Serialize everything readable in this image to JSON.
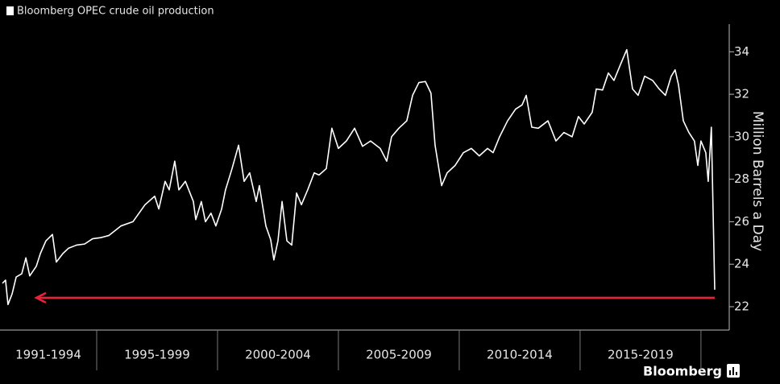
{
  "chart_data": {
    "type": "line",
    "title": "Bloomberg OPEC crude oil production",
    "y_label": "Million Barrels a Day",
    "source": "Bloomberg",
    "xlim": [
      1991,
      2021.17
    ],
    "ylim": [
      20.9,
      35.3
    ],
    "yticks": [
      22,
      24,
      26,
      28,
      30,
      32,
      34
    ],
    "x_bands": [
      {
        "label": "1991-1994",
        "start": 1991,
        "end": 1995
      },
      {
        "label": "1995-1999",
        "start": 1995,
        "end": 2000
      },
      {
        "label": "2000-2004",
        "start": 2000,
        "end": 2005
      },
      {
        "label": "2005-2009",
        "start": 2005,
        "end": 2010
      },
      {
        "label": "2010-2014",
        "start": 2010,
        "end": 2015
      },
      {
        "label": "2015-2019",
        "start": 2015,
        "end": 2020
      }
    ],
    "reference_line": {
      "value": 22.42,
      "x": [
        2020.57,
        1992.5
      ],
      "color": "#e8233b"
    },
    "series": [
      {
        "name": "Bloomberg OPEC crude oil production",
        "color": "#ffffff",
        "x": [
          1991.1,
          1991.23,
          1991.33,
          1991.5,
          1991.67,
          1991.9,
          1992.07,
          1992.23,
          1992.5,
          1992.67,
          1992.9,
          1993.17,
          1993.33,
          1993.6,
          1993.83,
          1994.17,
          1994.5,
          1994.83,
          1995.17,
          1995.5,
          1996.0,
          1996.5,
          1997.0,
          1997.4,
          1997.57,
          1997.83,
          1998.0,
          1998.23,
          1998.4,
          1998.67,
          1999.0,
          1999.1,
          1999.33,
          1999.5,
          1999.73,
          1999.93,
          2000.17,
          2000.33,
          2000.6,
          2000.87,
          2001.1,
          2001.33,
          2001.6,
          2001.73,
          2002.0,
          2002.2,
          2002.33,
          2002.5,
          2002.67,
          2002.87,
          2003.07,
          2003.27,
          2003.47,
          2003.73,
          2004.0,
          2004.2,
          2004.5,
          2004.73,
          2005.0,
          2005.33,
          2005.67,
          2006.0,
          2006.33,
          2006.73,
          2007.0,
          2007.2,
          2007.5,
          2007.83,
          2008.07,
          2008.33,
          2008.6,
          2008.83,
          2009.0,
          2009.27,
          2009.5,
          2009.83,
          2010.17,
          2010.5,
          2010.83,
          2011.17,
          2011.4,
          2011.67,
          2012.0,
          2012.33,
          2012.6,
          2012.77,
          2013.0,
          2013.27,
          2013.67,
          2014.0,
          2014.33,
          2014.67,
          2014.93,
          2015.17,
          2015.5,
          2015.67,
          2015.93,
          2016.17,
          2016.4,
          2016.67,
          2016.93,
          2017.17,
          2017.4,
          2017.67,
          2018.0,
          2018.27,
          2018.53,
          2018.77,
          2018.93,
          2019.07,
          2019.27,
          2019.5,
          2019.73,
          2019.87,
          2020.0,
          2020.2,
          2020.3,
          2020.43,
          2020.57
        ],
        "values": [
          23.1,
          23.25,
          22.1,
          22.6,
          23.4,
          23.55,
          24.3,
          23.45,
          23.9,
          24.5,
          25.1,
          25.4,
          24.1,
          24.5,
          24.75,
          24.9,
          24.95,
          25.2,
          25.25,
          25.35,
          25.8,
          26.0,
          26.8,
          27.2,
          26.6,
          27.9,
          27.5,
          28.85,
          27.5,
          27.9,
          26.95,
          26.1,
          26.95,
          26.0,
          26.4,
          25.8,
          26.6,
          27.5,
          28.5,
          29.6,
          27.9,
          28.3,
          26.95,
          27.7,
          25.8,
          25.15,
          24.2,
          25.1,
          26.95,
          25.1,
          24.9,
          27.35,
          26.8,
          27.5,
          28.3,
          28.2,
          28.5,
          30.4,
          29.45,
          29.8,
          30.4,
          29.55,
          29.8,
          29.45,
          28.85,
          30.0,
          30.4,
          30.75,
          31.95,
          32.55,
          32.6,
          32.05,
          29.6,
          27.7,
          28.3,
          28.65,
          29.25,
          29.45,
          29.1,
          29.45,
          29.25,
          30.0,
          30.75,
          31.3,
          31.5,
          31.95,
          30.45,
          30.4,
          30.75,
          29.8,
          30.2,
          30.0,
          30.95,
          30.6,
          31.15,
          32.25,
          32.2,
          33.0,
          32.65,
          33.4,
          34.1,
          32.25,
          31.95,
          32.85,
          32.65,
          32.25,
          31.95,
          32.85,
          33.15,
          32.45,
          30.75,
          30.2,
          29.8,
          28.65,
          29.8,
          29.25,
          27.9,
          30.45,
          22.8
        ]
      }
    ]
  }
}
